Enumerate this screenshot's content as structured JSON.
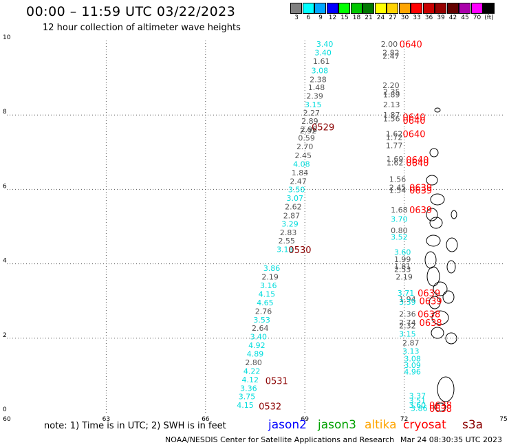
{
  "header": {
    "title": "00:00 – 11:59 UTC 03/22/2023",
    "subtitle": "12 hour collection of altimeter wave heights"
  },
  "colorbar": {
    "colors": [
      "#808080",
      "#00ffff",
      "#00a5ff",
      "#0000ff",
      "#00ff00",
      "#00c800",
      "#007800",
      "#ffff00",
      "#ffd200",
      "#ffa500",
      "#ff0000",
      "#c80000",
      "#960000",
      "#640000",
      "#aa00aa",
      "#ff00ff",
      "#000000"
    ],
    "labels": [
      "3",
      "6",
      "9",
      "12",
      "15",
      "18",
      "21",
      "24",
      "27",
      "30",
      "33",
      "36",
      "39",
      "42",
      "45",
      "70",
      "(ft)"
    ]
  },
  "axes": {
    "x_ticks": [
      "60",
      "63",
      "66",
      "69",
      "72",
      "75"
    ],
    "y_ticks": [
      "0",
      "2",
      "4",
      "6",
      "8",
      "10"
    ]
  },
  "chart_data": {
    "type": "scatter",
    "xlim": [
      60,
      75
    ],
    "ylim": [
      0,
      10
    ],
    "labels": [
      {
        "lon": 69.6,
        "lat": 9.91,
        "text": "3.40",
        "color": "#00dcdc"
      },
      {
        "lon": 69.55,
        "lat": 9.68,
        "text": "3.40",
        "color": "#00dcdc"
      },
      {
        "lon": 69.5,
        "lat": 9.45,
        "text": "1.61",
        "color": "#555555"
      },
      {
        "lon": 69.45,
        "lat": 9.2,
        "text": "3.08",
        "color": "#00dcdc"
      },
      {
        "lon": 69.4,
        "lat": 8.96,
        "text": "2.38",
        "color": "#555555"
      },
      {
        "lon": 69.35,
        "lat": 8.74,
        "text": "1.48",
        "color": "#555555"
      },
      {
        "lon": 69.3,
        "lat": 8.51,
        "text": "2.39",
        "color": "#555555"
      },
      {
        "lon": 69.25,
        "lat": 8.28,
        "text": "3.15",
        "color": "#00dcdc"
      },
      {
        "lon": 69.2,
        "lat": 8.06,
        "text": "2.27",
        "color": "#555555"
      },
      {
        "lon": 69.15,
        "lat": 7.84,
        "text": "2.89",
        "color": "#555555"
      },
      {
        "lon": 69.12,
        "lat": 7.62,
        "text": "2.98",
        "color": "#555555"
      },
      {
        "lon": 69.1,
        "lat": 7.58,
        "text": "2.92",
        "color": "#555555"
      },
      {
        "lon": 69.05,
        "lat": 7.38,
        "text": "0.59",
        "color": "#555555"
      },
      {
        "lon": 69.0,
        "lat": 7.15,
        "text": "2.70",
        "color": "#555555"
      },
      {
        "lon": 68.95,
        "lat": 6.91,
        "text": "2.45",
        "color": "#555555"
      },
      {
        "lon": 68.9,
        "lat": 6.68,
        "text": "4.08",
        "color": "#00dcdc"
      },
      {
        "lon": 68.85,
        "lat": 6.45,
        "text": "1.84",
        "color": "#555555"
      },
      {
        "lon": 68.8,
        "lat": 6.22,
        "text": "2.47",
        "color": "#555555"
      },
      {
        "lon": 68.75,
        "lat": 6.0,
        "text": "3.50",
        "color": "#00dcdc"
      },
      {
        "lon": 68.7,
        "lat": 5.77,
        "text": "3.07",
        "color": "#00dcdc"
      },
      {
        "lon": 68.65,
        "lat": 5.54,
        "text": "2.62",
        "color": "#555555"
      },
      {
        "lon": 68.6,
        "lat": 5.3,
        "text": "2.87",
        "color": "#555555"
      },
      {
        "lon": 68.55,
        "lat": 5.07,
        "text": "3.29",
        "color": "#00dcdc"
      },
      {
        "lon": 68.5,
        "lat": 4.84,
        "text": "2.83",
        "color": "#555555"
      },
      {
        "lon": 68.45,
        "lat": 4.62,
        "text": "2.55",
        "color": "#555555"
      },
      {
        "lon": 68.4,
        "lat": 4.39,
        "text": "3.13",
        "color": "#00dcdc"
      },
      {
        "lon": 68.0,
        "lat": 3.88,
        "text": "3.86",
        "color": "#00dcdc"
      },
      {
        "lon": 67.95,
        "lat": 3.65,
        "text": "2.19",
        "color": "#555555"
      },
      {
        "lon": 67.9,
        "lat": 3.42,
        "text": "3.16",
        "color": "#00dcdc"
      },
      {
        "lon": 67.85,
        "lat": 3.19,
        "text": "4.15",
        "color": "#00dcdc"
      },
      {
        "lon": 67.8,
        "lat": 2.96,
        "text": "4.65",
        "color": "#00dcdc"
      },
      {
        "lon": 67.75,
        "lat": 2.73,
        "text": "2.76",
        "color": "#555555"
      },
      {
        "lon": 67.7,
        "lat": 2.5,
        "text": "3.53",
        "color": "#00dcdc"
      },
      {
        "lon": 67.65,
        "lat": 2.27,
        "text": "2.64",
        "color": "#555555"
      },
      {
        "lon": 67.6,
        "lat": 2.04,
        "text": "3.40",
        "color": "#00dcdc"
      },
      {
        "lon": 67.55,
        "lat": 1.81,
        "text": "4.92",
        "color": "#00dcdc"
      },
      {
        "lon": 67.5,
        "lat": 1.58,
        "text": "4.89",
        "color": "#00dcdc"
      },
      {
        "lon": 67.45,
        "lat": 1.35,
        "text": "2.80",
        "color": "#555555"
      },
      {
        "lon": 67.4,
        "lat": 1.12,
        "text": "4.22",
        "color": "#00dcdc"
      },
      {
        "lon": 67.35,
        "lat": 0.89,
        "text": "4.12",
        "color": "#00dcdc"
      },
      {
        "lon": 67.3,
        "lat": 0.66,
        "text": "3.36",
        "color": "#00dcdc"
      },
      {
        "lon": 67.25,
        "lat": 0.43,
        "text": "3.75",
        "color": "#00dcdc"
      },
      {
        "lon": 67.2,
        "lat": 0.2,
        "text": "4.15",
        "color": "#00dcdc"
      },
      {
        "lon": 71.55,
        "lat": 9.91,
        "text": "2.00",
        "color": "#555555"
      },
      {
        "lon": 71.6,
        "lat": 9.68,
        "text": "2.82",
        "color": "#555555"
      },
      {
        "lon": 71.6,
        "lat": 9.58,
        "text": "2.47",
        "color": "#555555"
      },
      {
        "lon": 71.6,
        "lat": 8.8,
        "text": "2.20",
        "color": "#555555"
      },
      {
        "lon": 71.62,
        "lat": 8.62,
        "text": "2.35",
        "color": "#555555"
      },
      {
        "lon": 71.62,
        "lat": 8.55,
        "text": "1.89",
        "color": "#555555"
      },
      {
        "lon": 71.62,
        "lat": 8.28,
        "text": "2.13",
        "color": "#555555"
      },
      {
        "lon": 71.62,
        "lat": 8.0,
        "text": "1.87",
        "color": "#555555"
      },
      {
        "lon": 71.62,
        "lat": 7.9,
        "text": "1.56",
        "color": "#555555"
      },
      {
        "lon": 71.7,
        "lat": 7.5,
        "text": "1.62",
        "color": "#555555"
      },
      {
        "lon": 71.7,
        "lat": 7.4,
        "text": "1.72",
        "color": "#555555"
      },
      {
        "lon": 71.7,
        "lat": 7.18,
        "text": "1.77",
        "color": "#555555"
      },
      {
        "lon": 71.72,
        "lat": 6.82,
        "text": "1.69",
        "color": "#555555"
      },
      {
        "lon": 71.72,
        "lat": 6.72,
        "text": "1.62",
        "color": "#555555"
      },
      {
        "lon": 71.8,
        "lat": 6.28,
        "text": "1.56",
        "color": "#555555"
      },
      {
        "lon": 71.8,
        "lat": 6.05,
        "text": "2.45",
        "color": "#555555"
      },
      {
        "lon": 71.8,
        "lat": 5.98,
        "text": "1.54",
        "color": "#555555"
      },
      {
        "lon": 71.85,
        "lat": 5.45,
        "text": "1.68",
        "color": "#555555"
      },
      {
        "lon": 71.85,
        "lat": 5.2,
        "text": "3.70",
        "color": "#00dcdc"
      },
      {
        "lon": 71.85,
        "lat": 4.9,
        "text": "0.80",
        "color": "#555555"
      },
      {
        "lon": 71.85,
        "lat": 4.72,
        "text": "3.52",
        "color": "#00dcdc"
      },
      {
        "lon": 71.95,
        "lat": 4.32,
        "text": "3.60",
        "color": "#00dcdc"
      },
      {
        "lon": 71.95,
        "lat": 4.12,
        "text": "1.99",
        "color": "#555555"
      },
      {
        "lon": 71.95,
        "lat": 3.94,
        "text": "1.81",
        "color": "#555555"
      },
      {
        "lon": 71.95,
        "lat": 3.85,
        "text": "2.53",
        "color": "#555555"
      },
      {
        "lon": 72.0,
        "lat": 3.65,
        "text": "2.19",
        "color": "#555555"
      },
      {
        "lon": 72.05,
        "lat": 3.22,
        "text": "3.71",
        "color": "#00dcdc"
      },
      {
        "lon": 72.1,
        "lat": 3.05,
        "text": "1.94",
        "color": "#555555"
      },
      {
        "lon": 72.1,
        "lat": 2.98,
        "text": "3.39",
        "color": "#00dcdc"
      },
      {
        "lon": 72.1,
        "lat": 2.65,
        "text": "2.36",
        "color": "#555555"
      },
      {
        "lon": 72.1,
        "lat": 2.42,
        "text": "2.74",
        "color": "#555555"
      },
      {
        "lon": 72.1,
        "lat": 2.34,
        "text": "2.32",
        "color": "#555555"
      },
      {
        "lon": 72.1,
        "lat": 2.12,
        "text": "3.15",
        "color": "#00dcdc"
      },
      {
        "lon": 72.2,
        "lat": 1.88,
        "text": "2.87",
        "color": "#555555"
      },
      {
        "lon": 72.2,
        "lat": 1.65,
        "text": "3.13",
        "color": "#00dcdc"
      },
      {
        "lon": 72.25,
        "lat": 1.45,
        "text": "3.08",
        "color": "#00dcdc"
      },
      {
        "lon": 72.25,
        "lat": 1.28,
        "text": "3.09",
        "color": "#00dcdc"
      },
      {
        "lon": 72.25,
        "lat": 1.1,
        "text": "4.96",
        "color": "#00dcdc"
      },
      {
        "lon": 72.4,
        "lat": 0.45,
        "text": "3.37",
        "color": "#00dcdc"
      },
      {
        "lon": 72.4,
        "lat": 0.32,
        "text": "3.51",
        "color": "#00dcdc"
      },
      {
        "lon": 72.4,
        "lat": 0.2,
        "text": "3.60",
        "color": "#00dcdc"
      },
      {
        "lon": 72.45,
        "lat": 0.12,
        "text": "3.86",
        "color": "#00dcdc"
      }
    ],
    "time_labels": [
      {
        "lon": 69.55,
        "lat": 7.68,
        "text": "0529",
        "color": "#8b0000"
      },
      {
        "lon": 68.85,
        "lat": 4.38,
        "text": "0530",
        "color": "#8b0000"
      },
      {
        "lon": 68.15,
        "lat": 0.86,
        "text": "0531",
        "color": "#8b0000"
      },
      {
        "lon": 67.95,
        "lat": 0.18,
        "text": "0532",
        "color": "#8b0000"
      },
      {
        "lon": 72.2,
        "lat": 9.91,
        "text": "0640",
        "color": "#ff0000"
      },
      {
        "lon": 72.3,
        "lat": 7.95,
        "text": "0640",
        "color": "#ff0000"
      },
      {
        "lon": 72.3,
        "lat": 7.86,
        "text": "0640",
        "color": "#ff0000"
      },
      {
        "lon": 72.3,
        "lat": 7.5,
        "text": "0640",
        "color": "#ff0000"
      },
      {
        "lon": 72.4,
        "lat": 6.8,
        "text": "0640",
        "color": "#ff0000"
      },
      {
        "lon": 72.4,
        "lat": 6.72,
        "text": "0640",
        "color": "#ff0000"
      },
      {
        "lon": 72.5,
        "lat": 6.05,
        "text": "0639",
        "color": "#ff0000"
      },
      {
        "lon": 72.5,
        "lat": 5.98,
        "text": "0639",
        "color": "#ff0000"
      },
      {
        "lon": 72.5,
        "lat": 5.45,
        "text": "0639",
        "color": "#ff0000"
      },
      {
        "lon": 72.75,
        "lat": 3.22,
        "text": "0639",
        "color": "#ff0000"
      },
      {
        "lon": 72.8,
        "lat": 3.0,
        "text": "0639",
        "color": "#ff0000"
      },
      {
        "lon": 72.75,
        "lat": 2.65,
        "text": "0638",
        "color": "#ff0000"
      },
      {
        "lon": 72.8,
        "lat": 2.42,
        "text": "0638",
        "color": "#ff0000"
      },
      {
        "lon": 73.1,
        "lat": 0.2,
        "text": "0638",
        "color": "#ff0000"
      },
      {
        "lon": 73.1,
        "lat": 0.11,
        "text": "0638",
        "color": "#ff0000"
      }
    ]
  },
  "note": "note: 1) Time is in UTC; 2) SWH is in feet",
  "legend": [
    {
      "name": "jason2",
      "color": "#0000ff"
    },
    {
      "name": "jason3",
      "color": "#00a000"
    },
    {
      "name": "altika",
      "color": "#ffa500"
    },
    {
      "name": "cryosat",
      "color": "#ff0000"
    },
    {
      "name": "s3a",
      "color": "#8b0000"
    }
  ],
  "footer": {
    "left": "NOAA/NESDIS Center for Satellite Applications and Research",
    "right": "Mar 24 08:30:35 UTC 2023"
  }
}
